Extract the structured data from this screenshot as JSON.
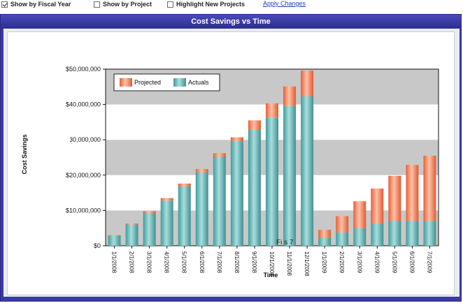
{
  "toolbar": {
    "fiscal_year_label": "Show by Fiscal Year",
    "fiscal_year_checked": true,
    "by_project_label": "Show by Project",
    "by_project_checked": false,
    "highlight_label": "Highlight New Projects",
    "highlight_checked": false,
    "apply_label": "Apply Changes"
  },
  "colors": {
    "actuals": "#5fb6b4",
    "projected": "#f07a52",
    "band_gray": "#c8c8c8",
    "band_white": "#ffffff",
    "frame": "#3a3aa0"
  },
  "chart_data": {
    "type": "bar",
    "stacked": true,
    "title": "Cost Savings vs Time",
    "xlabel": "Time",
    "ylabel": "Cost Savings",
    "ylim": [
      0,
      50000000
    ],
    "yticks": [
      "$0",
      "$10,000,000",
      "$20,000,000",
      "$30,000,000",
      "$40,000,000",
      "$50,000,000"
    ],
    "categories": [
      "1/1/2008",
      "2/1/2008",
      "3/1/2008",
      "4/1/2008",
      "5/1/2008",
      "6/1/2008",
      "7/1/2008",
      "8/1/2008",
      "9/1/2008",
      "10/1/2008",
      "11/1/2008",
      "12/1/2008",
      "1/1/2009",
      "2/1/2009",
      "3/1/2009",
      "4/1/2009",
      "5/1/2009",
      "6/1/2009",
      "7/1/2009"
    ],
    "series": [
      {
        "name": "Actuals",
        "values": [
          2800000,
          6000000,
          9300000,
          12800000,
          16800000,
          20800000,
          25200000,
          29600000,
          32800000,
          36300000,
          39600000,
          42300000,
          2200000,
          3800000,
          5000000,
          6200000,
          7000000,
          7000000,
          7000000
        ]
      },
      {
        "name": "Projected",
        "values": [
          200000,
          300000,
          500000,
          700000,
          800000,
          900000,
          1000000,
          1100000,
          2700000,
          4000000,
          5500000,
          7300000,
          2300000,
          4600000,
          7600000,
          10000000,
          12800000,
          15900000,
          18500000
        ]
      }
    ],
    "legend": [
      "Projected",
      "Actuals"
    ],
    "legend_position": "top-left",
    "annotation": "Fi      s      7"
  }
}
